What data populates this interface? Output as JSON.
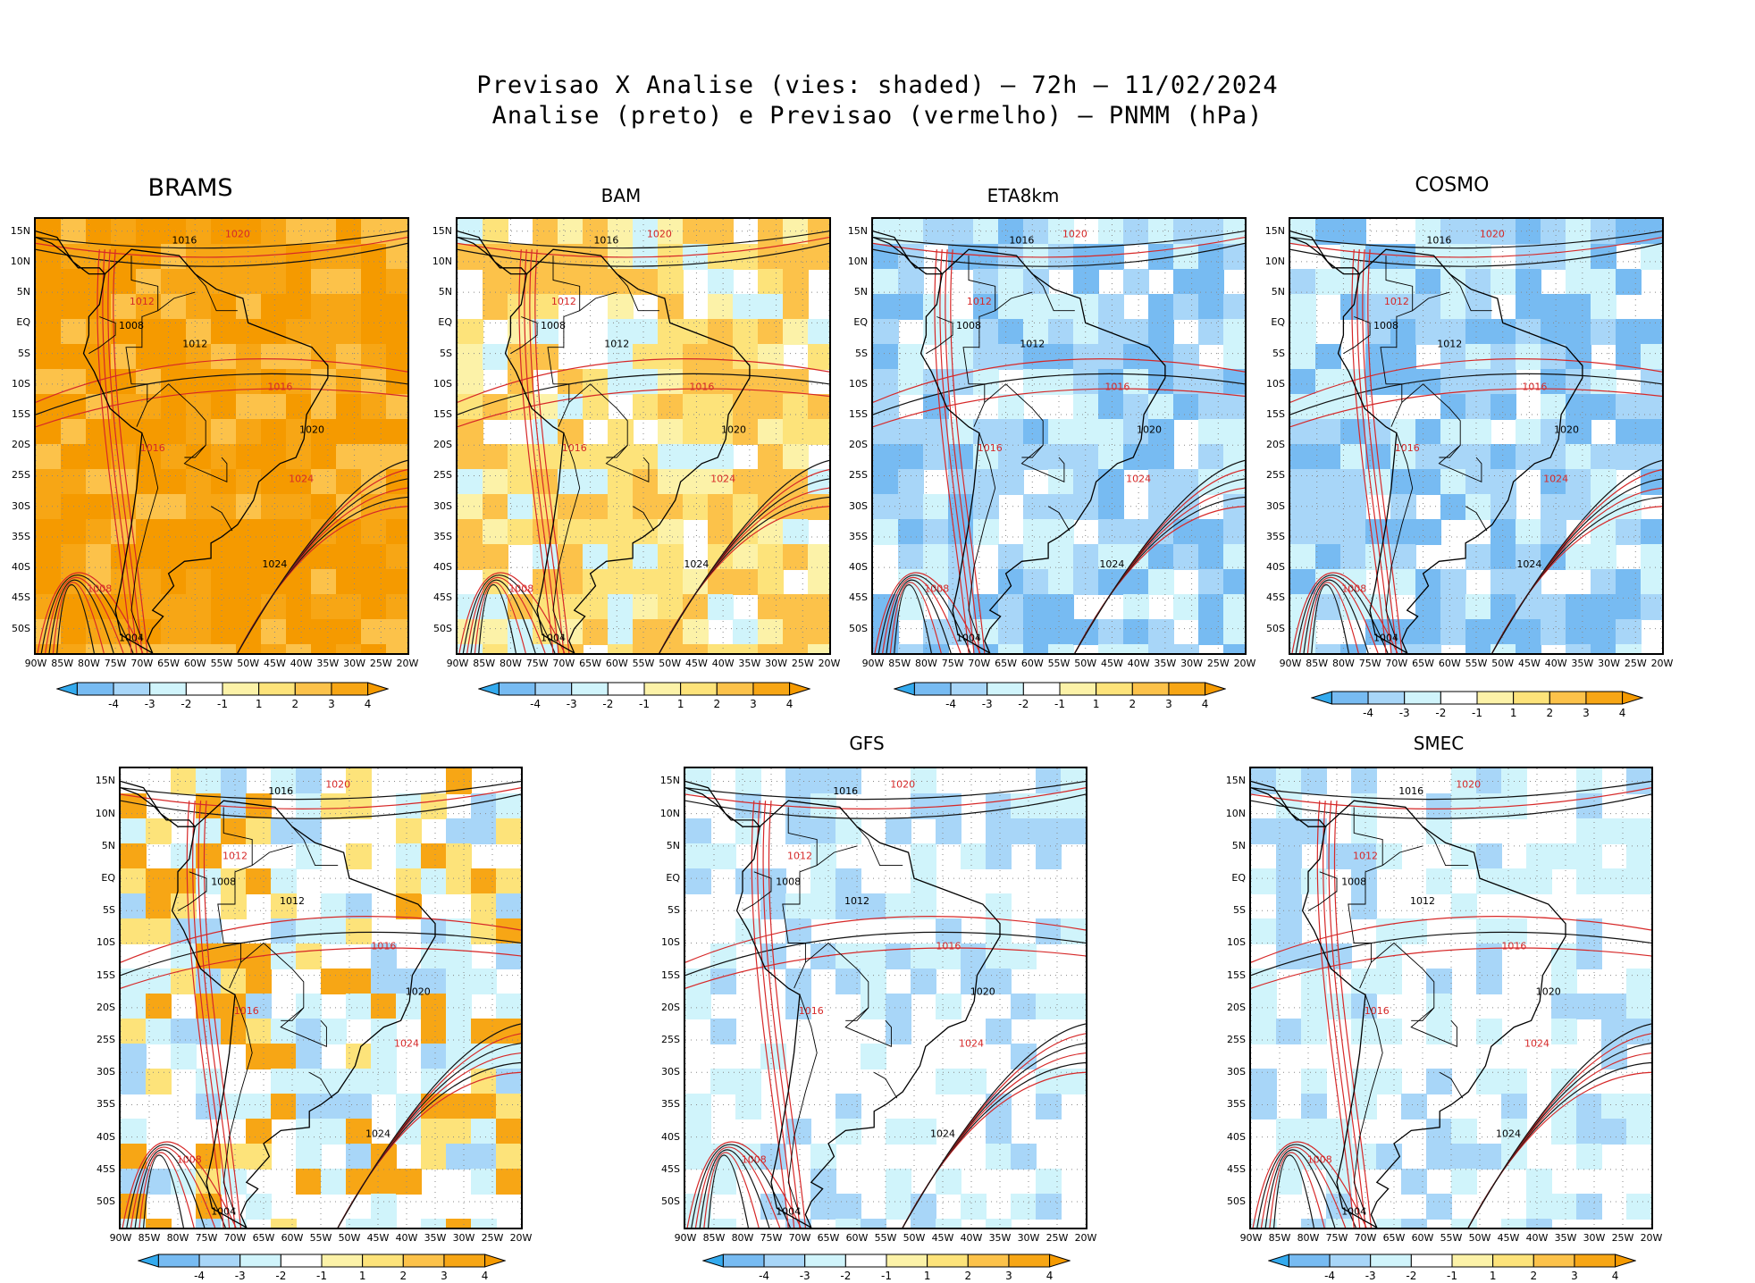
{
  "header": {
    "line1": "Previsao X Analise (vies: shaded) – 72h – 11/02/2024",
    "line2": "Analise (preto) e Previsao (vermelho) – PNMM (hPa)"
  },
  "lat_labels": [
    "15N",
    "10N",
    "5N",
    "EQ",
    "5S",
    "10S",
    "15S",
    "20S",
    "25S",
    "30S",
    "35S",
    "40S",
    "45S",
    "50S"
  ],
  "lon_labels": [
    "90W",
    "85W",
    "80W",
    "75W",
    "70W",
    "65W",
    "60W",
    "55W",
    "50W",
    "45W",
    "40W",
    "35W",
    "30W",
    "25W",
    "20W"
  ],
  "colorbar": {
    "labels": [
      "-4",
      "-3",
      "-2",
      "-1",
      "1",
      "2",
      "3",
      "4"
    ],
    "colors": [
      "#33aaee",
      "#77bbf2",
      "#a8d6f8",
      "#d0f4fb",
      "#ffffff",
      "#fcf2a8",
      "#fde37a",
      "#fcc24a",
      "#f7a615",
      "#f59a00"
    ]
  },
  "contour_labels": {
    "black": [
      "1016",
      "1012",
      "1008",
      "1020",
      "1024",
      "1004"
    ],
    "red": [
      "1020",
      "1016",
      "1012",
      "1008",
      "1024",
      "1004"
    ]
  },
  "panels": [
    {
      "id": "brams",
      "title": "BRAMS",
      "bias": "warm"
    },
    {
      "id": "bam",
      "title": "BAM",
      "bias": "mixed-warm"
    },
    {
      "id": "eta8km",
      "title": "ETA8km",
      "bias": "cold"
    },
    {
      "id": "cosmo",
      "title": "COSMO",
      "bias": "cold"
    },
    {
      "id": "unnamed",
      "title": "",
      "bias": "mixed"
    },
    {
      "id": "gfs",
      "title": "GFS",
      "bias": "cold-light"
    },
    {
      "id": "smec",
      "title": "SMEC",
      "bias": "cold-light"
    }
  ]
}
